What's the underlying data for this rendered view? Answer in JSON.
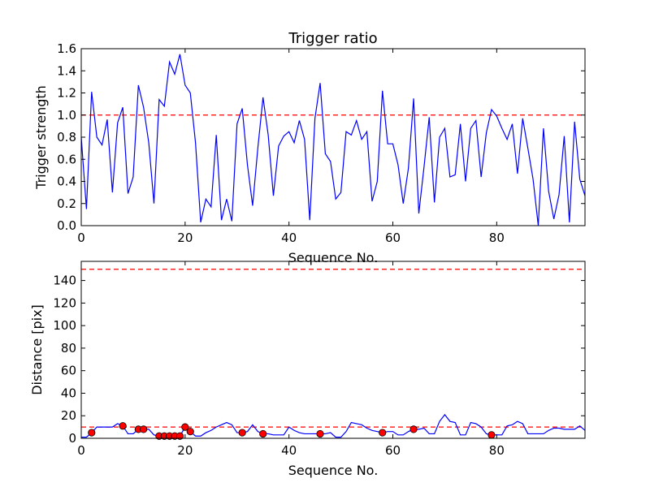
{
  "chart_data": [
    {
      "type": "line",
      "title": "Trigger ratio",
      "xlabel": "Sequence No.",
      "ylabel": "Trigger strength",
      "xlim": [
        0,
        97
      ],
      "ylim": [
        0,
        1.6
      ],
      "xticks": [
        0,
        20,
        40,
        60,
        80
      ],
      "xtick_labels": [
        "0",
        "20",
        "40",
        "60",
        "80"
      ],
      "yticks": [
        0.0,
        0.2,
        0.4,
        0.6,
        0.8,
        1.0,
        1.2,
        1.4,
        1.6
      ],
      "ytick_labels": [
        "0.0",
        "0.2",
        "0.4",
        "0.6",
        "0.8",
        "1.0",
        "1.2",
        "1.4",
        "1.6"
      ],
      "threshold": 1.0,
      "line_color": "#0000ff",
      "threshold_color": "#ff0000",
      "series": [
        {
          "name": "Trigger strength",
          "x": [
            0,
            1,
            2,
            3,
            4,
            5,
            6,
            7,
            8,
            9,
            10,
            11,
            12,
            13,
            14,
            15,
            16,
            17,
            18,
            19,
            20,
            21,
            22,
            23,
            24,
            25,
            26,
            27,
            28,
            29,
            30,
            31,
            32,
            33,
            34,
            35,
            36,
            37,
            38,
            39,
            40,
            41,
            42,
            43,
            44,
            45,
            46,
            47,
            48,
            49,
            50,
            51,
            52,
            53,
            54,
            55,
            56,
            57,
            58,
            59,
            60,
            61,
            62,
            63,
            64,
            65,
            66,
            67,
            68,
            69,
            70,
            71,
            72,
            73,
            74,
            75,
            76,
            77,
            78,
            79,
            80,
            81,
            82,
            83,
            84,
            85,
            86,
            87,
            88,
            89,
            90,
            91,
            92,
            93,
            94,
            95,
            96,
            97
          ],
          "values": [
            0.8,
            0.15,
            1.21,
            0.8,
            0.73,
            0.96,
            0.3,
            0.93,
            1.07,
            0.29,
            0.44,
            1.27,
            1.07,
            0.75,
            0.2,
            1.14,
            1.08,
            1.48,
            1.37,
            1.55,
            1.27,
            1.2,
            0.75,
            0.03,
            0.24,
            0.17,
            0.82,
            0.05,
            0.24,
            0.04,
            0.92,
            1.06,
            0.55,
            0.18,
            0.7,
            1.16,
            0.82,
            0.27,
            0.72,
            0.81,
            0.85,
            0.75,
            0.95,
            0.78,
            0.05,
            0.97,
            1.29,
            0.65,
            0.58,
            0.24,
            0.3,
            0.85,
            0.82,
            0.95,
            0.78,
            0.85,
            0.22,
            0.4,
            1.22,
            0.74,
            0.74,
            0.55,
            0.2,
            0.52,
            1.15,
            0.11,
            0.53,
            0.98,
            0.21,
            0.8,
            0.88,
            0.44,
            0.46,
            0.92,
            0.4,
            0.88,
            0.95,
            0.44,
            0.84,
            1.05,
            0.99,
            0.88,
            0.78,
            0.92,
            0.47,
            0.97,
            0.7,
            0.42,
            0.0,
            0.88,
            0.31,
            0.06,
            0.28,
            0.81,
            0.03,
            0.94,
            0.42,
            0.27
          ]
        }
      ]
    },
    {
      "type": "line",
      "title": "",
      "xlabel": "Sequence No.",
      "ylabel": "Distance [pix]",
      "xlim": [
        0,
        97
      ],
      "ylim": [
        0,
        157
      ],
      "xticks": [
        0,
        20,
        40,
        60,
        80
      ],
      "xtick_labels": [
        "0",
        "20",
        "40",
        "60",
        "80"
      ],
      "yticks": [
        0,
        20,
        40,
        60,
        80,
        100,
        120,
        140
      ],
      "ytick_labels": [
        "0",
        "20",
        "40",
        "60",
        "80",
        "100",
        "120",
        "140"
      ],
      "thresholds": [
        10,
        150
      ],
      "line_color": "#0000ff",
      "threshold_color": "#ff0000",
      "marker_color": "#ff0000",
      "series": [
        {
          "name": "Distance",
          "x": [
            0,
            1,
            2,
            3,
            4,
            5,
            6,
            7,
            8,
            9,
            10,
            11,
            12,
            13,
            14,
            15,
            16,
            17,
            18,
            19,
            20,
            21,
            22,
            23,
            24,
            25,
            26,
            27,
            28,
            29,
            30,
            31,
            32,
            33,
            34,
            35,
            36,
            37,
            38,
            39,
            40,
            41,
            42,
            43,
            44,
            45,
            46,
            47,
            48,
            49,
            50,
            51,
            52,
            53,
            54,
            55,
            56,
            57,
            58,
            59,
            60,
            61,
            62,
            63,
            64,
            65,
            66,
            67,
            68,
            69,
            70,
            71,
            72,
            73,
            74,
            75,
            76,
            77,
            78,
            79,
            80,
            81,
            82,
            83,
            84,
            85,
            86,
            87,
            88,
            89,
            90,
            91,
            92,
            93,
            94,
            95,
            96,
            97
          ],
          "values": [
            1,
            1,
            5,
            10,
            10,
            10,
            10,
            13,
            11,
            4,
            4,
            8,
            8,
            8,
            3,
            2,
            2,
            2,
            2,
            2,
            10,
            6,
            2,
            2,
            5,
            7,
            10,
            12,
            14,
            12,
            5,
            5,
            6,
            12,
            6,
            4,
            4,
            3,
            3,
            3,
            10,
            7,
            5,
            4,
            4,
            4,
            4,
            4,
            5,
            1,
            1,
            6,
            14,
            13,
            12,
            9,
            7,
            6,
            5,
            6,
            6,
            3,
            3,
            6,
            8,
            8,
            9,
            4,
            4,
            15,
            21,
            15,
            14,
            3,
            3,
            14,
            13,
            10,
            4,
            3,
            3,
            3,
            11,
            12,
            15,
            13,
            4,
            4,
            4,
            4,
            7,
            9,
            9,
            8,
            8,
            8,
            11,
            7
          ]
        },
        {
          "name": "Triggered",
          "x": [
            2,
            8,
            11,
            12,
            15,
            16,
            17,
            18,
            19,
            20,
            21,
            31,
            35,
            46,
            58,
            64,
            79
          ],
          "values": [
            5,
            11,
            8,
            8,
            2,
            2,
            2,
            2,
            2,
            10,
            6,
            5,
            4,
            4,
            5,
            8,
            3
          ]
        }
      ]
    }
  ]
}
